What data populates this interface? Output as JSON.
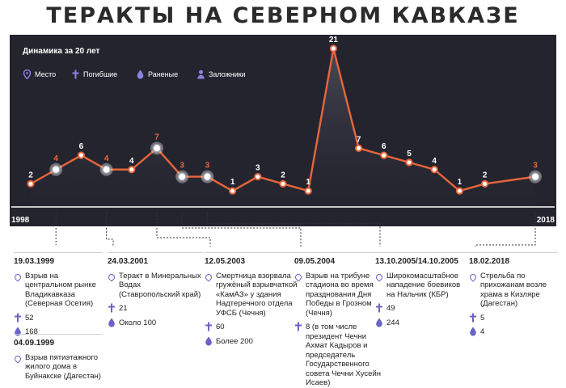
{
  "page": {
    "title": "ТЕРАКТЫ НА СЕВЕРНОМ КАВКАЗЕ",
    "subtitle": "Динамика за 20 лет"
  },
  "legend": {
    "place": "Место",
    "dead": "Погибшие",
    "wounded": "Раненые",
    "hostages": "Заложники"
  },
  "colors": {
    "panel_bg": "#24242f",
    "line": "#e8663a",
    "highlight_label": "#e8663a",
    "label": "#ffffff",
    "icon": "#6b63c8",
    "connector": "#333333"
  },
  "chart_data": {
    "type": "line",
    "title": "",
    "xlabel": "",
    "ylabel": "",
    "x": [
      1998,
      1999,
      2000,
      2001,
      2002,
      2003,
      2004,
      2005,
      2006,
      2007,
      2008,
      2009,
      2010,
      2011,
      2012,
      2013,
      2014,
      2015,
      2016,
      2017,
      2018
    ],
    "x_tick_labels": [
      "1998",
      "2018"
    ],
    "ylim": [
      0,
      21
    ],
    "grid": false,
    "series": [
      {
        "values": [
          2,
          4,
          6,
          4,
          4,
          7,
          3,
          3,
          1,
          3,
          2,
          1,
          21,
          7,
          6,
          5,
          4,
          1,
          2,
          3
        ],
        "x": [
          1998,
          1999,
          2000,
          2001,
          2002,
          2003,
          2004,
          2005,
          2006,
          2007,
          2008,
          2009,
          2010,
          2011,
          2012,
          2013,
          2014,
          2015,
          2016,
          2018
        ]
      }
    ],
    "highlighted_points": [
      1999,
      2001,
      2003,
      2004,
      2005,
      2018
    ]
  },
  "events": [
    {
      "date": "19.03.1999",
      "description": "Взрыв на центральном рынке Владикавказа (Северная Осетия)",
      "dead": "52",
      "wounded": "168"
    },
    {
      "date": "04.09.1999",
      "description": "Взрыв пятиэтажного жилого дома в Буйнакске (Дагестан)"
    },
    {
      "date": "24.03.2001",
      "description": "Теракт в Минеральных Водах (Ставропольский край)",
      "dead": "21",
      "wounded": "Около 100"
    },
    {
      "date": "12.05.2003",
      "description": "Смертница взорвала гружёный взрывчаткой «КамАЗ» у здания Надтеречного отдела УФСБ (Чечня)",
      "dead": "60",
      "wounded": "Более 200"
    },
    {
      "date": "09.05.2004",
      "description": "Взрыв на трибуне стадиона во время празднования Дня Победы в Грозном (Чечня)",
      "dead": "8 (в том числе президент Чечни Ахмат Кадыров и председатель Государственного совета Чечни Хусейн Исаев)"
    },
    {
      "date": "13.10.2005/14.10.2005",
      "description": "Широкомасштабное нападение боевиков на Нальчик (КБР)",
      "dead": "49",
      "wounded": "244"
    },
    {
      "date": "18.02.2018",
      "description": "Стрельба по прихожанам возле храма в Кизляре (Дагестан)",
      "dead": "5",
      "wounded": "4"
    }
  ]
}
